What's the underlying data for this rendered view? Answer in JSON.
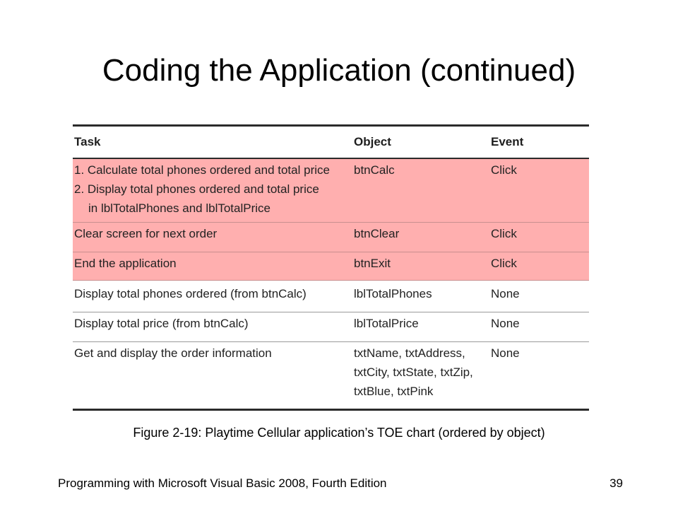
{
  "slide": {
    "title": "Coding the Application (continued)",
    "caption": "Figure 2-19: Playtime Cellular application’s TOE chart (ordered by object)",
    "footer": "Programming with Microsoft Visual Basic 2008, Fourth Edition",
    "page_number": "39"
  },
  "toe": {
    "headers": {
      "task": "Task",
      "object": "Object",
      "event": "Event"
    },
    "highlight_color": "#ffafaf",
    "rows": [
      {
        "task": [
          "1. Calculate total phones ordered and total price",
          "2. Display total phones ordered and total price",
          "in lblTotalPhones and lblTotalPrice"
        ],
        "object": [
          "btnCalc"
        ],
        "event": "Click",
        "highlighted": true
      },
      {
        "task": [
          "Clear screen for next order"
        ],
        "object": [
          "btnClear"
        ],
        "event": "Click",
        "highlighted": true
      },
      {
        "task": [
          "End the application"
        ],
        "object": [
          "btnExit"
        ],
        "event": "Click",
        "highlighted": true
      },
      {
        "task": [
          "Display total phones ordered (from btnCalc)"
        ],
        "object": [
          "lblTotalPhones"
        ],
        "event": "None",
        "highlighted": false
      },
      {
        "task": [
          "Display total price (from btnCalc)"
        ],
        "object": [
          "lblTotalPrice"
        ],
        "event": "None",
        "highlighted": false
      },
      {
        "task": [
          "Get and display the order information"
        ],
        "object": [
          "txtName, txtAddress,",
          "txtCity, txtState, txtZip,",
          "txtBlue, txtPink"
        ],
        "event": "None",
        "highlighted": false
      }
    ]
  }
}
